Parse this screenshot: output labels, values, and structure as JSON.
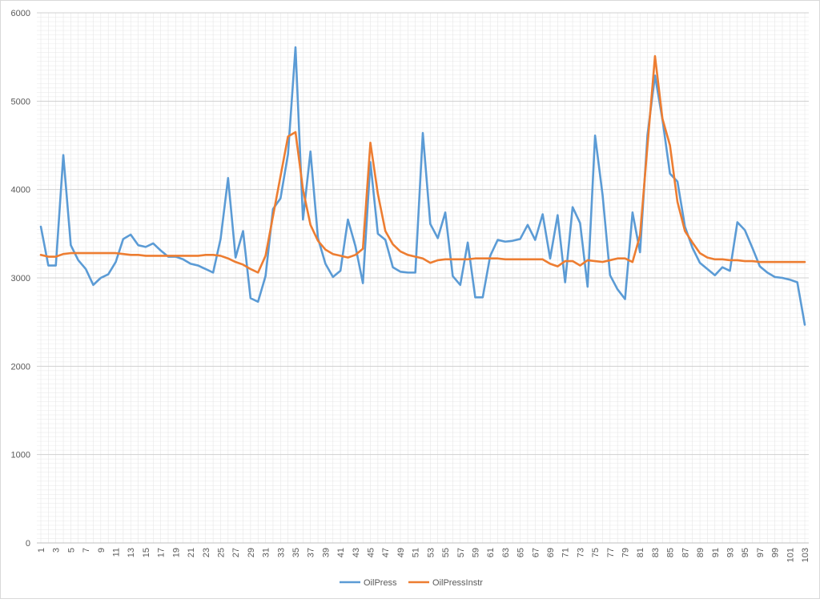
{
  "chart_data": {
    "type": "line",
    "title": "",
    "xlabel": "",
    "ylabel": "",
    "ylim": [
      0,
      6000
    ],
    "yticks": [
      0,
      1000,
      2000,
      3000,
      4000,
      5000,
      6000
    ],
    "x": [
      1,
      2,
      3,
      4,
      5,
      6,
      7,
      8,
      9,
      10,
      11,
      12,
      13,
      14,
      15,
      16,
      17,
      18,
      19,
      20,
      21,
      22,
      23,
      24,
      25,
      26,
      27,
      28,
      29,
      30,
      31,
      32,
      33,
      34,
      35,
      36,
      37,
      38,
      39,
      40,
      41,
      42,
      43,
      44,
      45,
      46,
      47,
      48,
      49,
      50,
      51,
      52,
      53,
      54,
      55,
      56,
      57,
      58,
      59,
      60,
      61,
      62,
      63,
      64,
      65,
      66,
      67,
      68,
      69,
      70,
      71,
      72,
      73,
      74,
      75,
      76,
      77,
      78,
      79,
      80,
      81,
      82,
      83,
      84,
      85,
      86,
      87,
      88,
      89,
      90,
      91,
      92,
      93,
      94,
      95,
      96,
      97,
      98,
      99,
      100,
      101,
      102,
      103
    ],
    "xtick_labels": [
      "1",
      "3",
      "5",
      "7",
      "9",
      "11",
      "13",
      "15",
      "17",
      "19",
      "21",
      "23",
      "25",
      "27",
      "29",
      "31",
      "33",
      "35",
      "37",
      "39",
      "41",
      "43",
      "45",
      "47",
      "49",
      "51",
      "53",
      "55",
      "57",
      "59",
      "61",
      "63",
      "65",
      "67",
      "69",
      "71",
      "73",
      "75",
      "77",
      "79",
      "81",
      "83",
      "85",
      "87",
      "89",
      "91",
      "93",
      "95",
      "97",
      "99",
      "101",
      "103"
    ],
    "grid": true,
    "legend_position": "bottom",
    "series": [
      {
        "name": "OilPress",
        "color": "#5b9bd5",
        "values": [
          3580,
          3140,
          3140,
          4390,
          3370,
          3200,
          3100,
          2920,
          3000,
          3040,
          3180,
          3440,
          3490,
          3370,
          3350,
          3390,
          3310,
          3240,
          3240,
          3210,
          3160,
          3140,
          3100,
          3060,
          3440,
          4130,
          3230,
          3530,
          2770,
          2730,
          3020,
          3780,
          3900,
          4400,
          5610,
          3660,
          4430,
          3450,
          3160,
          3010,
          3080,
          3660,
          3360,
          2940,
          4310,
          3500,
          3430,
          3120,
          3070,
          3060,
          3060,
          4640,
          3610,
          3450,
          3740,
          3020,
          2920,
          3400,
          2780,
          2780,
          3250,
          3430,
          3410,
          3420,
          3440,
          3600,
          3430,
          3720,
          3220,
          3710,
          2950,
          3800,
          3620,
          2900,
          4610,
          3940,
          3030,
          2870,
          2760,
          3740,
          3290,
          4620,
          5290,
          4790,
          4180,
          4090,
          3580,
          3340,
          3170,
          3100,
          3030,
          3120,
          3080,
          3630,
          3540,
          3340,
          3130,
          3060,
          3010,
          3000,
          2980,
          2950,
          2470
        ]
      },
      {
        "name": "OilPressInstr",
        "color": "#ed7d31",
        "values": [
          3260,
          3240,
          3240,
          3270,
          3280,
          3280,
          3280,
          3280,
          3280,
          3280,
          3280,
          3270,
          3260,
          3260,
          3250,
          3250,
          3250,
          3250,
          3250,
          3250,
          3250,
          3250,
          3260,
          3260,
          3250,
          3220,
          3180,
          3150,
          3100,
          3060,
          3250,
          3700,
          4150,
          4600,
          4650,
          4000,
          3600,
          3420,
          3320,
          3270,
          3250,
          3230,
          3260,
          3330,
          4530,
          3950,
          3530,
          3380,
          3300,
          3260,
          3240,
          3220,
          3170,
          3200,
          3210,
          3210,
          3210,
          3210,
          3220,
          3220,
          3220,
          3220,
          3210,
          3210,
          3210,
          3210,
          3210,
          3210,
          3160,
          3130,
          3190,
          3190,
          3140,
          3200,
          3190,
          3180,
          3200,
          3220,
          3220,
          3180,
          3480,
          4500,
          5510,
          4800,
          4500,
          3860,
          3530,
          3400,
          3280,
          3230,
          3210,
          3210,
          3200,
          3200,
          3190,
          3190,
          3180,
          3180,
          3180,
          3180,
          3180,
          3180,
          3180
        ]
      }
    ]
  }
}
